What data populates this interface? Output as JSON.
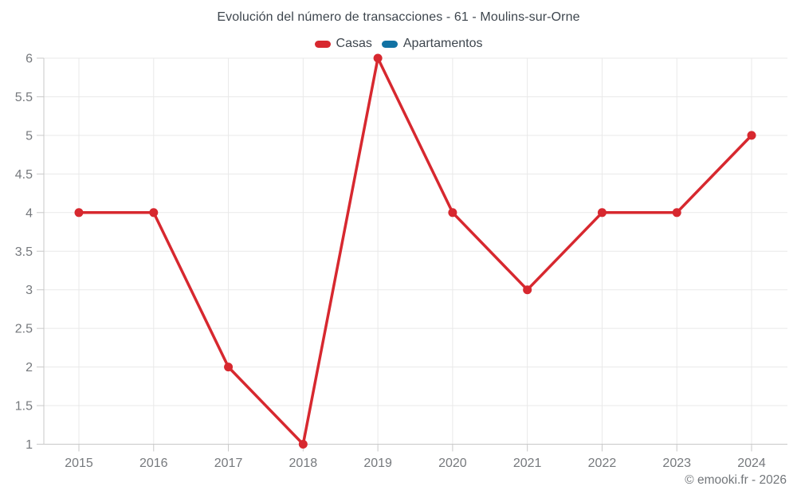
{
  "header": {
    "title": "Evolución del número de transacciones - 61 - Moulins-sur-Orne"
  },
  "legend": {
    "items": [
      {
        "label": "Casas",
        "color": "#d7282f"
      },
      {
        "label": "Apartamentos",
        "color": "#1272a3"
      }
    ]
  },
  "footer": {
    "copyright": "© emooki.fr - 2026"
  },
  "colors": {
    "background": "#ffffff",
    "series_casas": "#d7282f",
    "series_apartamentos": "#1272a3",
    "grid": "#e9e9e9",
    "axis": "#c9c9c9",
    "axis_text": "#76797d",
    "title_text": "#3e464e"
  },
  "chart_data": {
    "type": "line",
    "title": "Evolución del número de transacciones - 61 - Moulins-sur-Orne",
    "categories": [
      "2015",
      "2016",
      "2017",
      "2018",
      "2019",
      "2020",
      "2021",
      "2022",
      "2023",
      "2024"
    ],
    "series": [
      {
        "name": "Casas",
        "color": "#d7282f",
        "values": [
          4,
          4,
          2,
          1,
          6,
          4,
          3,
          4,
          4,
          5
        ]
      },
      {
        "name": "Apartamentos",
        "color": "#1272a3",
        "values": []
      }
    ],
    "xlabel": "",
    "ylabel": "",
    "ylim": [
      1,
      6
    ],
    "yticks": [
      1,
      1.5,
      2,
      2.5,
      3,
      3.5,
      4,
      4.5,
      5,
      5.5,
      6
    ],
    "grid": true,
    "legend_position": "top",
    "marker_radius": 5.5,
    "line_width": 3.5
  }
}
